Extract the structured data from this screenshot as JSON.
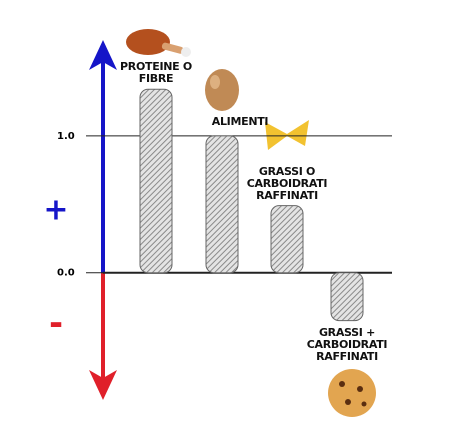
{
  "chart_data": {
    "type": "bar",
    "categories": [
      "PROTEINE O FIBRE",
      "ALIMENTI",
      "GRASSI O CARBOIDRATI RAFFINATI",
      "GRASSI + CARBOIDRATI RAFFINATI"
    ],
    "values": [
      1.34,
      1.0,
      0.49,
      -0.35
    ],
    "color": "#8a8a8a",
    "ylim": [
      -0.93,
      1.7
    ],
    "yticks": [
      {
        "value": 1,
        "label": "1.0"
      },
      {
        "value": 0,
        "label": "0.0"
      }
    ],
    "grid": true,
    "positive_label": "+",
    "negative_label": "-",
    "positive_color": "#1515c8",
    "negative_color": "#e0202a"
  }
}
